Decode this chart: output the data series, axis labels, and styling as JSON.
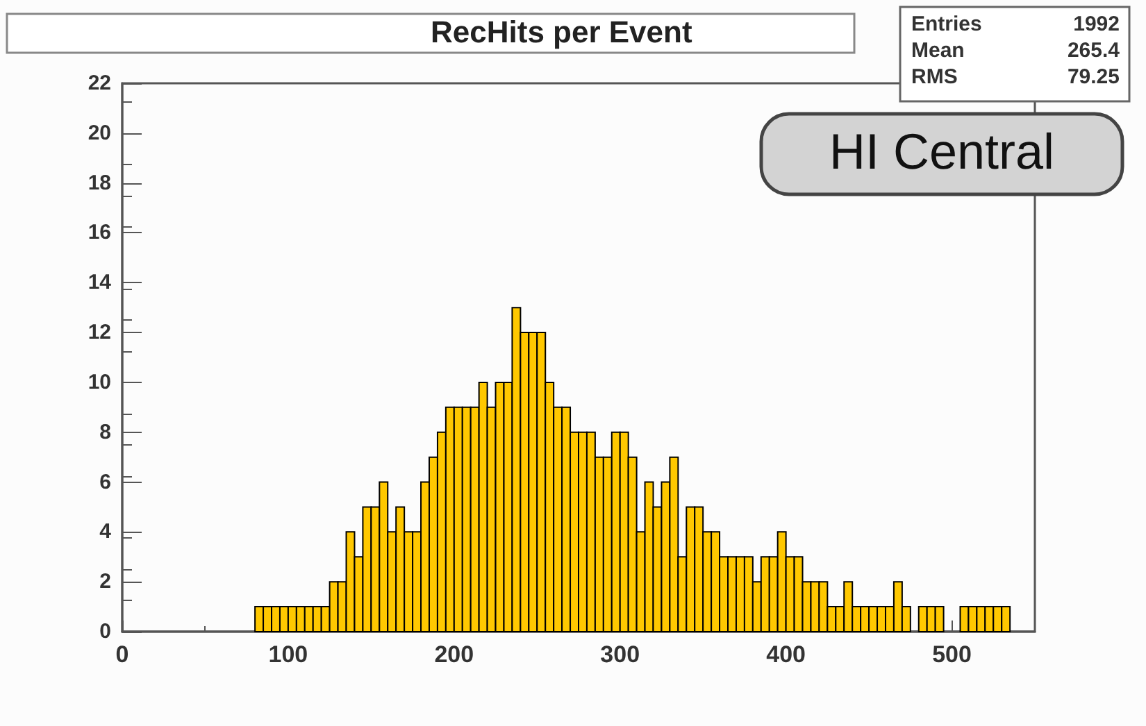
{
  "chart_data": {
    "type": "histogram",
    "title": "RecHits per Event",
    "bins": [
      80,
      85,
      90,
      95,
      100,
      105,
      110,
      115,
      120,
      125,
      130,
      135,
      140,
      145,
      150,
      155,
      160,
      165,
      170,
      175,
      180,
      185,
      190,
      195,
      200,
      205,
      210,
      215,
      220,
      225,
      230,
      235,
      240,
      245,
      250,
      255,
      260,
      265,
      270,
      275,
      280,
      285,
      290,
      295,
      300,
      305,
      310,
      315,
      320,
      325,
      330,
      335,
      340,
      345,
      350,
      355,
      360,
      365,
      370,
      375,
      380,
      385,
      390,
      395,
      400,
      405,
      410,
      415,
      420,
      425,
      430,
      435,
      440,
      445,
      450,
      455,
      460,
      465,
      470,
      475,
      480,
      485,
      490,
      495,
      500,
      505,
      510,
      515,
      520,
      525,
      530,
      535
    ],
    "values": [
      1,
      1,
      1,
      1,
      1,
      1,
      1,
      1,
      1,
      2,
      2,
      4,
      3,
      5,
      5,
      6,
      4,
      5,
      4,
      4,
      6,
      7,
      8,
      9,
      9,
      9,
      9,
      10,
      9,
      10,
      10,
      13,
      12,
      12,
      12,
      10,
      9,
      9,
      8,
      8,
      8,
      7,
      7,
      8,
      8,
      7,
      4,
      6,
      5,
      6,
      7,
      3,
      5,
      5,
      4,
      4,
      3,
      3,
      3,
      3,
      2,
      3,
      3,
      4,
      3,
      3,
      2,
      2,
      2,
      1,
      1,
      2,
      1,
      1,
      1,
      1,
      1,
      2,
      1,
      0,
      1,
      1,
      1,
      0,
      0,
      1,
      1,
      1,
      1,
      1,
      1
    ],
    "color": "#ffc800",
    "xlim": [
      0,
      550
    ],
    "xticks": [
      0,
      100,
      200,
      300,
      400,
      500
    ],
    "ylim": [
      0,
      22
    ],
    "yticks": [
      0,
      2,
      4,
      6,
      8,
      10,
      12,
      14,
      16,
      18,
      20,
      22
    ],
    "annotations": [
      "Entries 1992",
      "Mean 265.4",
      "RMS 79.25",
      "HI Central"
    ]
  }
}
